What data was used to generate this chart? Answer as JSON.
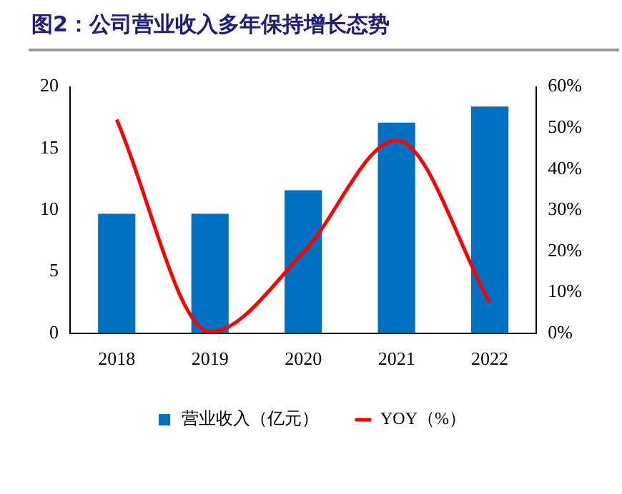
{
  "chart_data": {
    "type": "bar",
    "title": "图2：公司营业收入多年保持增长态势",
    "categories": [
      "2018",
      "2019",
      "2020",
      "2021",
      "2022"
    ],
    "series": [
      {
        "name": "营业收入（亿元）",
        "color": "#0070c0",
        "values": [
          9.7,
          9.7,
          11.6,
          17.1,
          18.4
        ]
      },
      {
        "name": "YOY（%）",
        "type": "line",
        "axis": "y2",
        "color": "#ff0000",
        "values": [
          52,
          0.3,
          19.6,
          47,
          7.5
        ]
      }
    ],
    "ylim": [
      0,
      20
    ],
    "yticks": [
      0,
      5,
      10,
      15,
      20
    ],
    "y2lim": [
      0,
      60
    ],
    "y2ticks": [
      {
        "value": 0,
        "label": "0%"
      },
      {
        "value": 10,
        "label": "10%"
      },
      {
        "value": 20,
        "label": "20%"
      },
      {
        "value": 30,
        "label": "30%"
      },
      {
        "value": 40,
        "label": "40%"
      },
      {
        "value": 50,
        "label": "50%"
      },
      {
        "value": 60,
        "label": "60%"
      }
    ],
    "grid": false,
    "legend": "bottom",
    "marker": "none"
  }
}
